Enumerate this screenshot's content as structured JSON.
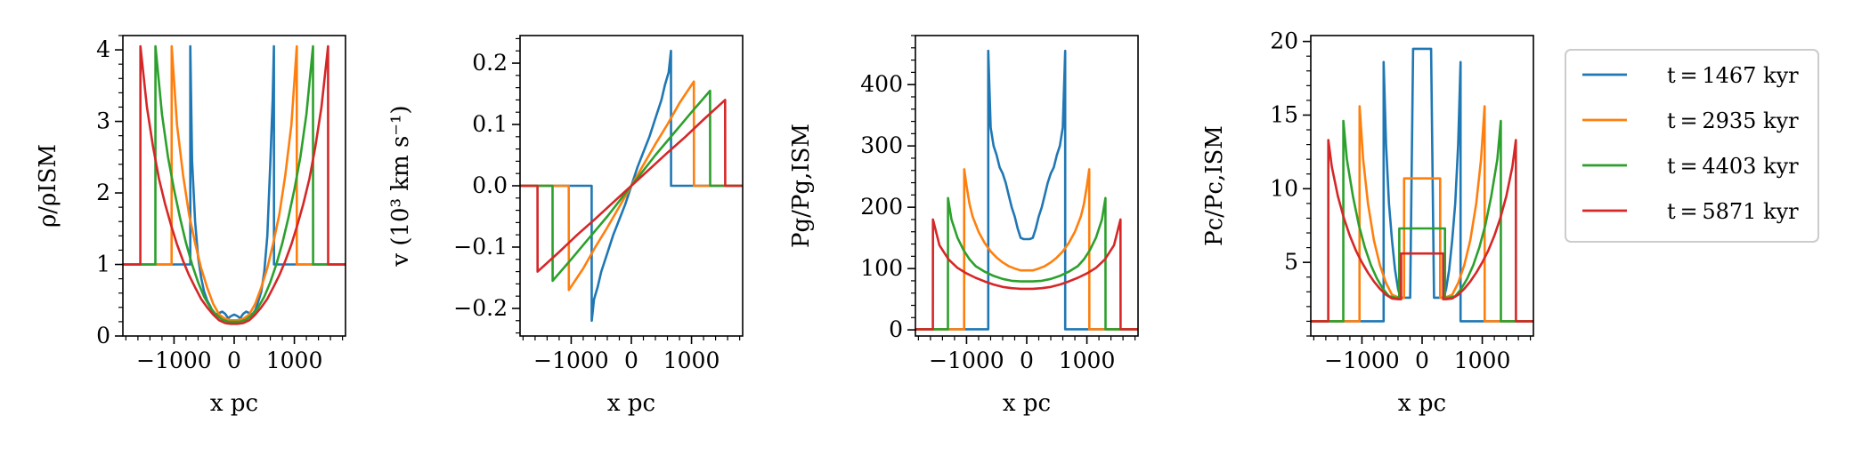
{
  "figure": {
    "legend": {
      "entries": [
        {
          "label": "t = 1467 kyr",
          "color": "#1f77b4"
        },
        {
          "label": "t = 2935 kyr",
          "color": "#ff7f0e"
        },
        {
          "label": "t = 4403 kyr",
          "color": "#2ca02c"
        },
        {
          "label": "t = 5871 kyr",
          "color": "#d62728"
        }
      ],
      "placement": "right"
    }
  },
  "chart_data": [
    {
      "type": "line",
      "id": "density",
      "xlabel": "x pc",
      "ylabel": "ρ/ρISM",
      "xlim": [
        -1850,
        1850
      ],
      "ylim": [
        0,
        4.2
      ],
      "xticks": [
        -1000,
        0,
        1000
      ],
      "xtick_labels": [
        "−1000",
        "0",
        "1000"
      ],
      "yticks": [
        0,
        1,
        2,
        3,
        4
      ],
      "ytick_labels": [
        "0",
        "1",
        "2",
        "3",
        "4"
      ],
      "series": [
        {
          "name": "t = 1467 kyr",
          "color": "#1f77b4",
          "x": [
            -1850,
            -730,
            -729,
            -700,
            -650,
            -600,
            -550,
            -500,
            -450,
            -400,
            -350,
            -300,
            -250,
            -200,
            -150,
            -100,
            -50,
            0,
            50,
            100,
            150,
            200,
            250,
            300,
            350,
            400,
            450,
            500,
            550,
            600,
            640,
            660,
            661,
            1850
          ],
          "y": [
            1,
            1,
            4.05,
            2.45,
            1.6,
            1.1,
            0.82,
            0.62,
            0.5,
            0.42,
            0.33,
            0.3,
            0.32,
            0.34,
            0.31,
            0.25,
            0.28,
            0.3,
            0.28,
            0.25,
            0.31,
            0.34,
            0.32,
            0.3,
            0.36,
            0.48,
            0.62,
            0.9,
            1.4,
            2.4,
            3.3,
            4.05,
            1,
            1
          ]
        },
        {
          "name": "t = 2935 kyr",
          "color": "#ff7f0e",
          "x": [
            -1850,
            -1040,
            -1039,
            -950,
            -850,
            -750,
            -650,
            -550,
            -450,
            -350,
            -250,
            -150,
            -50,
            0,
            50,
            150,
            250,
            350,
            450,
            550,
            650,
            750,
            850,
            950,
            1040,
            1041,
            1850
          ],
          "y": [
            1,
            1,
            4.05,
            2.95,
            2.25,
            1.7,
            1.3,
            0.95,
            0.68,
            0.45,
            0.3,
            0.24,
            0.22,
            0.22,
            0.22,
            0.24,
            0.3,
            0.45,
            0.68,
            0.95,
            1.3,
            1.7,
            2.25,
            2.95,
            4.05,
            1,
            1
          ]
        },
        {
          "name": "t = 4403 kyr",
          "color": "#2ca02c",
          "x": [
            -1850,
            -1310,
            -1309,
            -1200,
            -1100,
            -1000,
            -900,
            -800,
            -700,
            -600,
            -500,
            -400,
            -300,
            -200,
            -100,
            0,
            100,
            200,
            300,
            400,
            500,
            600,
            700,
            800,
            900,
            1000,
            1100,
            1200,
            1310,
            1311,
            1850
          ],
          "y": [
            1,
            1,
            4.05,
            3.1,
            2.5,
            2.05,
            1.65,
            1.3,
            1.0,
            0.75,
            0.55,
            0.4,
            0.3,
            0.23,
            0.2,
            0.2,
            0.2,
            0.23,
            0.3,
            0.4,
            0.55,
            0.75,
            1.0,
            1.3,
            1.65,
            2.05,
            2.5,
            3.1,
            4.05,
            1,
            1
          ]
        },
        {
          "name": "t = 5871 kyr",
          "color": "#d62728",
          "x": [
            -1850,
            -1560,
            -1559,
            -1450,
            -1350,
            -1250,
            -1150,
            -1050,
            -950,
            -850,
            -750,
            -650,
            -550,
            -450,
            -350,
            -250,
            -150,
            -50,
            0,
            50,
            150,
            250,
            350,
            450,
            550,
            650,
            750,
            850,
            950,
            1050,
            1150,
            1250,
            1350,
            1450,
            1560,
            1561,
            1850
          ],
          "y": [
            1,
            1,
            4.05,
            3.2,
            2.65,
            2.2,
            1.85,
            1.55,
            1.28,
            1.05,
            0.85,
            0.68,
            0.52,
            0.4,
            0.3,
            0.22,
            0.18,
            0.17,
            0.17,
            0.17,
            0.18,
            0.22,
            0.3,
            0.4,
            0.52,
            0.68,
            0.85,
            1.05,
            1.28,
            1.55,
            1.85,
            2.2,
            2.65,
            3.2,
            4.05,
            1,
            1
          ]
        }
      ]
    },
    {
      "type": "line",
      "id": "velocity",
      "xlabel": "x pc",
      "ylabel": "v (10³ km s⁻¹)",
      "xlim": [
        -1850,
        1850
      ],
      "ylim": [
        -0.245,
        0.245
      ],
      "xticks": [
        -1000,
        0,
        1000
      ],
      "xtick_labels": [
        "−1000",
        "0",
        "1000"
      ],
      "yticks": [
        -0.2,
        -0.1,
        0.0,
        0.1,
        0.2
      ],
      "ytick_labels": [
        "−0.2",
        "−0.1",
        "0.0",
        "0.1",
        "0.2"
      ],
      "series": [
        {
          "name": "t = 1467 kyr",
          "color": "#1f77b4",
          "x": [
            -1850,
            -660,
            -659,
            -620,
            -560,
            -500,
            -400,
            -300,
            -200,
            -100,
            0,
            100,
            200,
            300,
            400,
            500,
            560,
            620,
            659,
            660,
            1850
          ],
          "y": [
            0,
            0,
            -0.22,
            -0.185,
            -0.165,
            -0.14,
            -0.11,
            -0.08,
            -0.055,
            -0.03,
            0,
            0.03,
            0.055,
            0.08,
            0.11,
            0.14,
            0.165,
            0.185,
            0.22,
            0,
            0
          ]
        },
        {
          "name": "t = 2935 kyr",
          "color": "#ff7f0e",
          "x": [
            -1850,
            -1040,
            -1039,
            -800,
            -600,
            -400,
            -200,
            0,
            200,
            400,
            600,
            800,
            1039,
            1040,
            1850
          ],
          "y": [
            0,
            0,
            -0.17,
            -0.135,
            -0.1,
            -0.068,
            -0.034,
            0,
            0.034,
            0.068,
            0.1,
            0.135,
            0.17,
            0,
            0
          ]
        },
        {
          "name": "t = 4403 kyr",
          "color": "#2ca02c",
          "x": [
            -1850,
            -1310,
            -1309,
            -1000,
            -700,
            -400,
            -200,
            0,
            200,
            400,
            700,
            1000,
            1309,
            1310,
            1850
          ],
          "y": [
            0,
            0,
            -0.155,
            -0.12,
            -0.085,
            -0.05,
            -0.025,
            0,
            0.025,
            0.05,
            0.085,
            0.12,
            0.155,
            0,
            0
          ]
        },
        {
          "name": "t = 5871 kyr",
          "color": "#d62728",
          "x": [
            -1850,
            -1560,
            -1559,
            -1200,
            -900,
            -600,
            -300,
            0,
            300,
            600,
            900,
            1200,
            1559,
            1560,
            1850
          ],
          "y": [
            0,
            0,
            -0.14,
            -0.108,
            -0.08,
            -0.054,
            -0.027,
            0,
            0.027,
            0.054,
            0.08,
            0.108,
            0.14,
            0,
            0
          ]
        }
      ]
    },
    {
      "type": "line",
      "id": "gas-pressure",
      "xlabel": "x pc",
      "ylabel": "Pg/Pg,ISM",
      "xlim": [
        -1850,
        1850
      ],
      "ylim": [
        -10,
        480
      ],
      "xticks": [
        -1000,
        0,
        1000
      ],
      "xtick_labels": [
        "−1000",
        "0",
        "1000"
      ],
      "yticks": [
        0,
        100,
        200,
        300,
        400
      ],
      "ytick_labels": [
        "0",
        "100",
        "200",
        "300",
        "400"
      ],
      "series": [
        {
          "name": "t = 1467 kyr",
          "color": "#1f77b4",
          "x": [
            -1850,
            -640,
            -639,
            -600,
            -550,
            -500,
            -450,
            -400,
            -350,
            -300,
            -250,
            -200,
            -150,
            -100,
            -50,
            0,
            50,
            100,
            150,
            200,
            250,
            300,
            350,
            400,
            450,
            500,
            550,
            600,
            639,
            640,
            1850
          ],
          "y": [
            1,
            1,
            455,
            330,
            300,
            285,
            265,
            255,
            240,
            220,
            200,
            185,
            165,
            150,
            148,
            148,
            148,
            150,
            165,
            185,
            200,
            220,
            240,
            255,
            265,
            285,
            300,
            330,
            455,
            1,
            1
          ]
        },
        {
          "name": "t = 2935 kyr",
          "color": "#ff7f0e",
          "x": [
            -1850,
            -1040,
            -1039,
            -1000,
            -950,
            -900,
            -800,
            -700,
            -600,
            -500,
            -400,
            -300,
            -200,
            -100,
            0,
            100,
            200,
            300,
            400,
            500,
            600,
            700,
            800,
            900,
            950,
            1000,
            1039,
            1040,
            1850
          ],
          "y": [
            1,
            1,
            262,
            235,
            205,
            185,
            160,
            142,
            128,
            118,
            110,
            104,
            100,
            97,
            97,
            97,
            100,
            104,
            110,
            118,
            128,
            142,
            160,
            185,
            205,
            235,
            262,
            1,
            1
          ]
        },
        {
          "name": "t = 4403 kyr",
          "color": "#2ca02c",
          "x": [
            -1850,
            -1310,
            -1309,
            -1250,
            -1150,
            -1050,
            -950,
            -850,
            -700,
            -550,
            -400,
            -250,
            -100,
            0,
            100,
            250,
            400,
            550,
            700,
            850,
            950,
            1050,
            1150,
            1250,
            1309,
            1310,
            1850
          ],
          "y": [
            1,
            1,
            215,
            180,
            150,
            130,
            115,
            104,
            95,
            88,
            83,
            80,
            79,
            79,
            79,
            80,
            83,
            88,
            95,
            104,
            115,
            130,
            150,
            180,
            215,
            1,
            1
          ]
        },
        {
          "name": "t = 5871 kyr",
          "color": "#d62728",
          "x": [
            -1850,
            -1560,
            -1559,
            -1450,
            -1300,
            -1150,
            -1000,
            -850,
            -700,
            -550,
            -400,
            -250,
            -100,
            0,
            100,
            250,
            400,
            550,
            700,
            850,
            1000,
            1150,
            1300,
            1450,
            1559,
            1560,
            1850
          ],
          "y": [
            1,
            1,
            180,
            138,
            115,
            101,
            92,
            85,
            79,
            74,
            70,
            68,
            67,
            67,
            67,
            68,
            70,
            74,
            79,
            85,
            92,
            101,
            115,
            138,
            180,
            1,
            1
          ]
        }
      ]
    },
    {
      "type": "line",
      "id": "cr-pressure",
      "xlabel": "x pc",
      "ylabel": "Pc/Pc,ISM",
      "xlim": [
        -1850,
        1850
      ],
      "ylim": [
        0,
        20.4
      ],
      "xticks": [
        -1000,
        0,
        1000
      ],
      "xtick_labels": [
        "−1000",
        "0",
        "1000"
      ],
      "yticks": [
        5,
        10,
        15,
        20
      ],
      "ytick_labels": [
        "5",
        "10",
        "15",
        "20"
      ],
      "series": [
        {
          "name": "t = 1467 kyr",
          "color": "#1f77b4",
          "x": [
            -1850,
            -640,
            -639,
            -600,
            -550,
            -500,
            -450,
            -400,
            -360,
            -359,
            -200,
            -199,
            -150,
            -100,
            100,
            150,
            199,
            200,
            359,
            360,
            400,
            450,
            500,
            550,
            600,
            639,
            640,
            1850
          ],
          "y": [
            1,
            1,
            18.6,
            13,
            9,
            6.5,
            4.5,
            3.2,
            2.6,
            2.6,
            2.6,
            2.6,
            19.5,
            19.5,
            19.5,
            19.5,
            2.6,
            2.6,
            2.6,
            2.6,
            3.2,
            4.5,
            6.5,
            9,
            13,
            18.6,
            1,
            1
          ]
        },
        {
          "name": "t = 2935 kyr",
          "color": "#ff7f0e",
          "x": [
            -1850,
            -1040,
            -1039,
            -980,
            -900,
            -800,
            -700,
            -600,
            -500,
            -380,
            -379,
            -300,
            -299,
            300,
            301,
            380,
            381,
            500,
            600,
            700,
            800,
            900,
            980,
            1039,
            1040,
            1850
          ],
          "y": [
            1,
            1,
            15.6,
            12,
            9,
            6.5,
            4.8,
            3.6,
            2.8,
            2.6,
            2.6,
            2.6,
            10.7,
            10.7,
            2.6,
            2.6,
            2.6,
            2.8,
            3.6,
            4.8,
            6.5,
            9,
            12,
            15.6,
            1,
            1
          ]
        },
        {
          "name": "t = 4403 kyr",
          "color": "#2ca02c",
          "x": [
            -1850,
            -1310,
            -1309,
            -1250,
            -1150,
            -1050,
            -950,
            -850,
            -750,
            -650,
            -550,
            -450,
            -380,
            -379,
            380,
            381,
            450,
            550,
            650,
            750,
            850,
            950,
            1050,
            1150,
            1250,
            1309,
            1310,
            1850
          ],
          "y": [
            1,
            1,
            14.6,
            12,
            9.5,
            7.5,
            6,
            4.8,
            3.9,
            3.2,
            2.7,
            2.6,
            2.6,
            7.3,
            7.3,
            2.6,
            2.6,
            2.7,
            3.2,
            3.9,
            4.8,
            6,
            7.5,
            9.5,
            12,
            14.6,
            1,
            1
          ]
        },
        {
          "name": "t = 5871 kyr",
          "color": "#d62728",
          "x": [
            -1850,
            -1560,
            -1559,
            -1500,
            -1400,
            -1300,
            -1200,
            -1100,
            -1000,
            -900,
            -800,
            -700,
            -600,
            -500,
            -400,
            -350,
            -349,
            350,
            351,
            400,
            500,
            600,
            700,
            800,
            900,
            1000,
            1100,
            1200,
            1300,
            1400,
            1500,
            1559,
            1560,
            1850
          ],
          "y": [
            1,
            1,
            13.3,
            11.5,
            9.5,
            8,
            6.8,
            5.8,
            5,
            4.3,
            3.7,
            3.2,
            2.8,
            2.55,
            2.5,
            2.5,
            5.6,
            5.6,
            2.5,
            2.5,
            2.55,
            2.8,
            3.2,
            3.7,
            4.3,
            5,
            5.8,
            6.8,
            8,
            9.5,
            11.5,
            13.3,
            1,
            1
          ]
        }
      ]
    }
  ]
}
